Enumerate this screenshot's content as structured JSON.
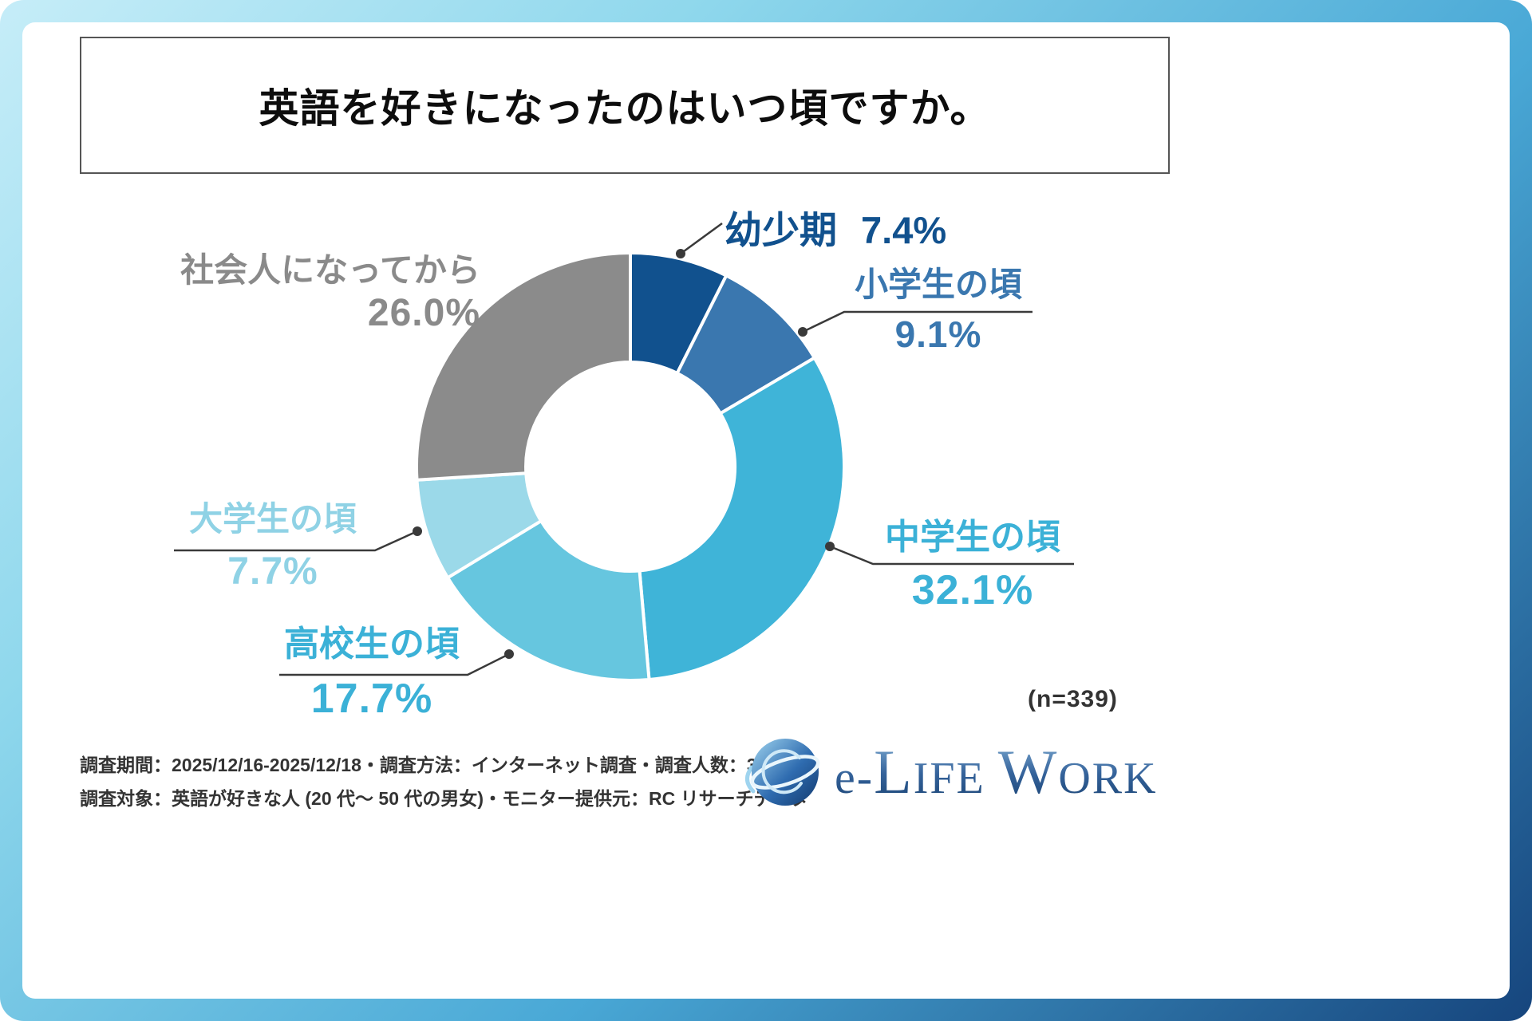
{
  "title": "英語を好きになったのはいつ頃ですか。",
  "n_label": "(n=339)",
  "chart_data": {
    "type": "pie",
    "donut": true,
    "title": "英語を好きになったのはいつ頃ですか。",
    "sample_size": 339,
    "start_angle_deg": 0,
    "direction": "clockwise",
    "segments": [
      {
        "label": "幼少期",
        "value": 7.4,
        "pct_label": "7.4%",
        "color": "#11518e"
      },
      {
        "label": "小学生の頃",
        "value": 9.1,
        "pct_label": "9.1%",
        "color": "#3a77af"
      },
      {
        "label": "中学生の頃",
        "value": 32.1,
        "pct_label": "32.1%",
        "color": "#3fb4d8"
      },
      {
        "label": "高校生の頃",
        "value": 17.7,
        "pct_label": "17.7%",
        "color": "#66c6df"
      },
      {
        "label": "大学生の頃",
        "value": 7.7,
        "pct_label": "7.7%",
        "color": "#9bd9e9"
      },
      {
        "label": "社会人になってから",
        "value": 26.0,
        "pct_label": "26.0%",
        "color": "#8b8b8b"
      }
    ]
  },
  "footer": {
    "line1": "調査期間：2025/12/16-2025/12/18・調査方法：インターネット調査・調査人数：339 名",
    "line2": "調査対象：英語が好きな人 (20 代～ 50 代の男女)・モニター提供元：RC リサーチデータ"
  },
  "logo": {
    "parts": [
      "e-",
      "L",
      "IFE",
      "W",
      "ORK"
    ]
  }
}
